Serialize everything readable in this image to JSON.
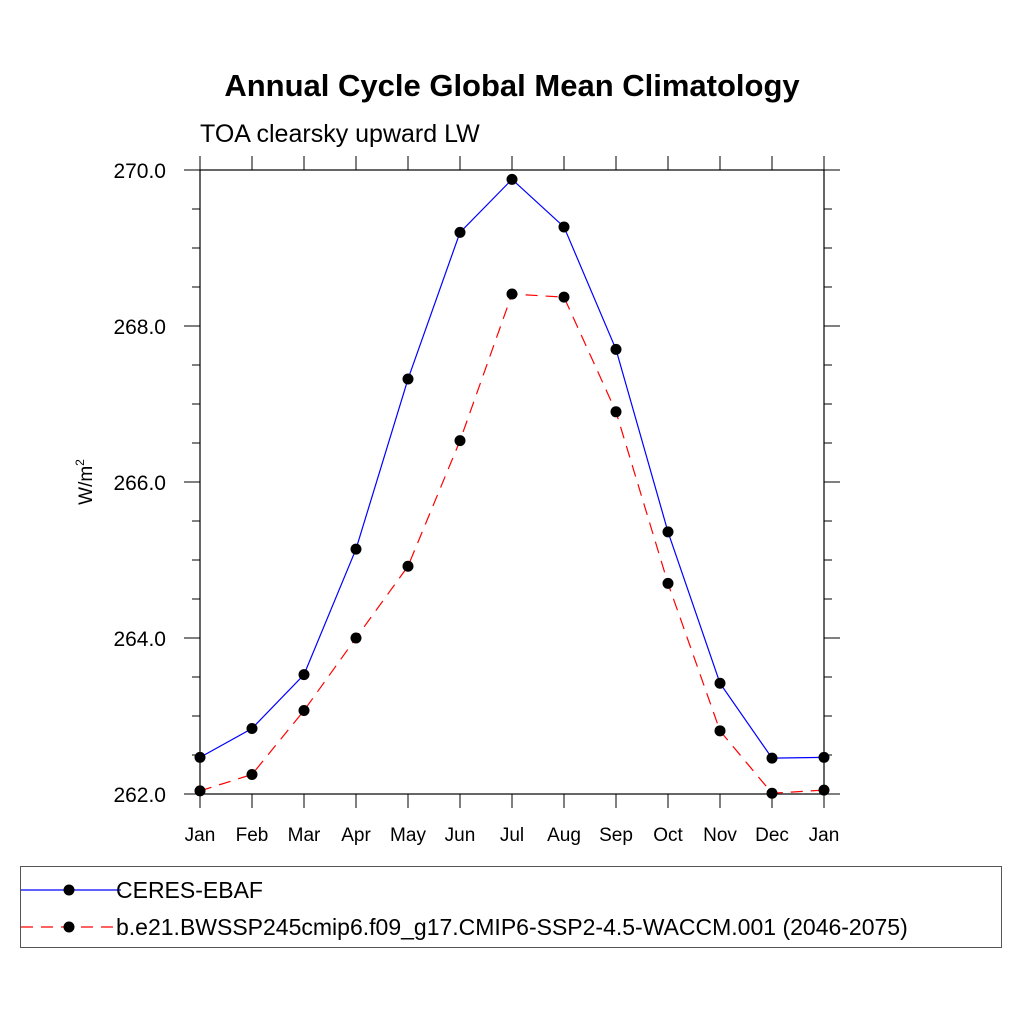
{
  "chart_data": {
    "type": "line",
    "title": "Annual Cycle Global Mean Climatology",
    "subtitle": "TOA clearsky upward LW",
    "ylabel_main": "W/m",
    "ylabel_sup": "2",
    "ylim": [
      262.0,
      270.0
    ],
    "yticks": [
      "262.0",
      "264.0",
      "266.0",
      "268.0",
      "270.0"
    ],
    "categories": [
      "Jan",
      "Feb",
      "Mar",
      "Apr",
      "May",
      "Jun",
      "Jul",
      "Aug",
      "Sep",
      "Oct",
      "Nov",
      "Dec",
      "Jan"
    ],
    "series": [
      {
        "name": "CERES-EBAF",
        "color": "#0000ff",
        "line_style": "solid",
        "values": [
          262.47,
          262.84,
          263.53,
          265.14,
          267.32,
          269.2,
          269.88,
          269.27,
          267.7,
          265.36,
          263.42,
          262.46,
          262.47
        ]
      },
      {
        "name": "b.e21.BWSSP245cmip6.f09_g17.CMIP6-SSP2-4.5-WACCM.001 (2046-2075)",
        "color": "#ff0000",
        "line_style": "dashed",
        "values": [
          262.04,
          262.25,
          263.07,
          264.0,
          264.92,
          266.53,
          268.41,
          268.37,
          266.9,
          264.7,
          262.81,
          262.01,
          262.05
        ]
      }
    ],
    "grid": false,
    "legend_position": "bottom"
  }
}
